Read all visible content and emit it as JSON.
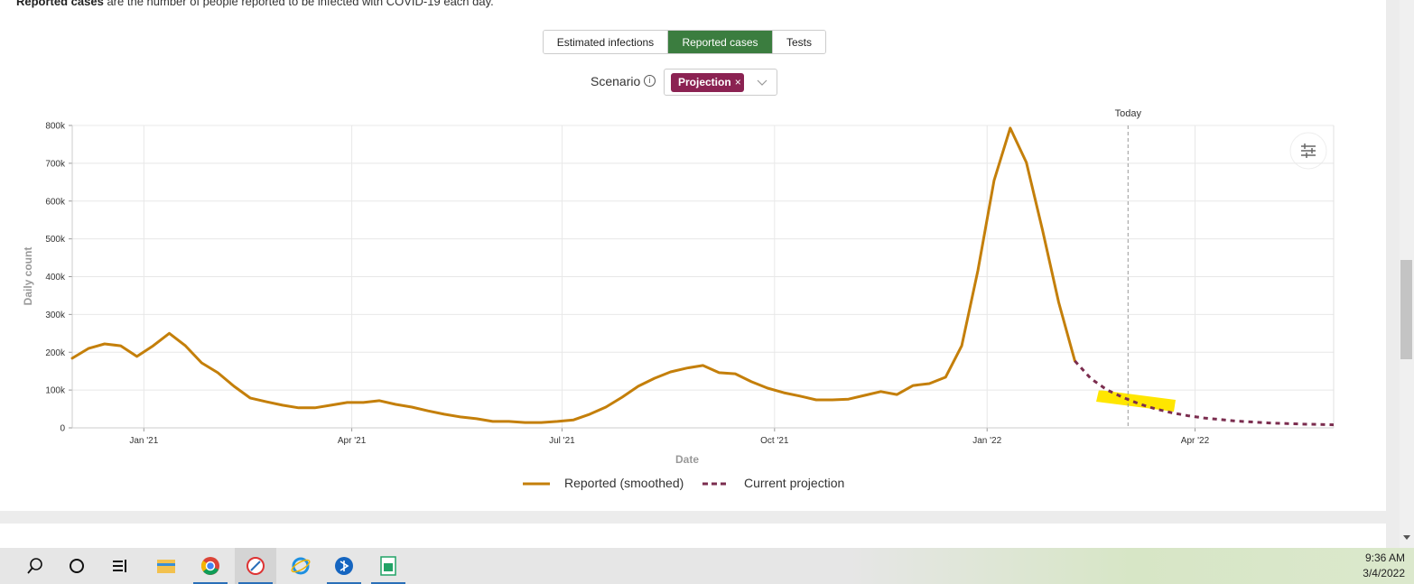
{
  "header": {
    "description_bold": "Reported cases",
    "description_rest": "are the number of people reported to be infected with COVID-19 each day."
  },
  "tabs": [
    "Estimated infections",
    "Reported cases",
    "Tests"
  ],
  "active_tab": 1,
  "scenario": {
    "label": "Scenario",
    "chip": "Projection"
  },
  "chart_data": {
    "type": "line",
    "x_label": "Date",
    "y_label": "Daily count",
    "xlim": [
      "2020-12-01",
      "2022-05-31"
    ],
    "xticks": [
      {
        "value": "2021-01-01",
        "label": "Jan '21"
      },
      {
        "value": "2021-04-01",
        "label": "Apr '21"
      },
      {
        "value": "2021-07-01",
        "label": "Jul '21"
      },
      {
        "value": "2021-10-01",
        "label": "Oct '21"
      },
      {
        "value": "2022-01-01",
        "label": "Jan '22"
      },
      {
        "value": "2022-04-01",
        "label": "Apr '22"
      }
    ],
    "ylim": [
      0,
      800000
    ],
    "yticks": [
      0,
      {
        "value": 100000,
        "label": "100k"
      },
      {
        "value": 200000,
        "label": "200k"
      },
      {
        "value": 300000,
        "label": "300k"
      },
      {
        "value": 400000,
        "label": "400k"
      },
      {
        "value": 500000,
        "label": "500k"
      },
      {
        "value": 600000,
        "label": "600k"
      },
      {
        "value": 700000,
        "label": "700k"
      },
      {
        "value": 800000,
        "label": "800k"
      }
    ],
    "grid": true,
    "today": {
      "x": "2022-03-03",
      "label": "Today"
    },
    "series": [
      {
        "name": "Reported (smoothed)",
        "color": "#c47f0a",
        "style": "solid",
        "x": [
          "2020-12-01",
          "2020-12-08",
          "2020-12-15",
          "2020-12-22",
          "2020-12-29",
          "2021-01-05",
          "2021-01-12",
          "2021-01-19",
          "2021-01-26",
          "2021-02-02",
          "2021-02-09",
          "2021-02-16",
          "2021-02-23",
          "2021-03-02",
          "2021-03-09",
          "2021-03-16",
          "2021-03-23",
          "2021-03-30",
          "2021-04-06",
          "2021-04-13",
          "2021-04-20",
          "2021-04-27",
          "2021-05-04",
          "2021-05-11",
          "2021-05-18",
          "2021-05-25",
          "2021-06-01",
          "2021-06-08",
          "2021-06-15",
          "2021-06-22",
          "2021-06-29",
          "2021-07-06",
          "2021-07-13",
          "2021-07-20",
          "2021-07-27",
          "2021-08-03",
          "2021-08-10",
          "2021-08-17",
          "2021-08-24",
          "2021-08-31",
          "2021-09-07",
          "2021-09-14",
          "2021-09-21",
          "2021-09-28",
          "2021-10-05",
          "2021-10-12",
          "2021-10-19",
          "2021-10-26",
          "2021-11-02",
          "2021-11-09",
          "2021-11-16",
          "2021-11-23",
          "2021-11-30",
          "2021-12-07",
          "2021-12-14",
          "2021-12-21",
          "2021-12-28",
          "2022-01-04",
          "2022-01-11",
          "2022-01-18",
          "2022-01-25",
          "2022-02-01",
          "2022-02-08"
        ],
        "values": [
          184000,
          210000,
          222000,
          217000,
          189000,
          217000,
          250000,
          217000,
          172000,
          146000,
          110000,
          79000,
          69000,
          60000,
          53000,
          53000,
          60000,
          67000,
          67000,
          72000,
          62000,
          55000,
          45000,
          36000,
          29000,
          24000,
          17000,
          17000,
          14000,
          14000,
          17000,
          21000,
          36000,
          55000,
          81000,
          110000,
          131000,
          148000,
          158000,
          165000,
          146000,
          143000,
          122000,
          105000,
          93000,
          84000,
          74000,
          74000,
          76000,
          86000,
          96000,
          88000,
          112000,
          117000,
          134000,
          217000,
          416000,
          654000,
          793000,
          702000,
          523000,
          332000,
          177000
        ]
      },
      {
        "name": "Current projection",
        "color": "#7b2d4f",
        "style": "dashed",
        "x": [
          "2022-02-08",
          "2022-02-15",
          "2022-02-22",
          "2022-03-01",
          "2022-03-08",
          "2022-03-15",
          "2022-03-22",
          "2022-03-29",
          "2022-04-05",
          "2022-04-19",
          "2022-05-03",
          "2022-05-17",
          "2022-05-31"
        ],
        "values": [
          177000,
          130000,
          100000,
          80000,
          63000,
          50000,
          40000,
          32000,
          26000,
          18000,
          13000,
          10000,
          8000
        ]
      }
    ]
  },
  "taskbar": {
    "time": "9:36 AM",
    "date": "3/4/2022"
  }
}
